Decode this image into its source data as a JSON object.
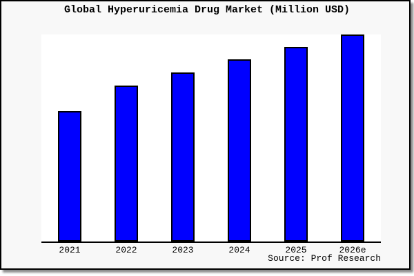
{
  "header": {
    "title": "Global Hyperuricemia Drug Market (Million USD)"
  },
  "footer": {
    "source": "Source: Prof Research"
  },
  "colors": {
    "bar_fill": "#0000ff",
    "bar_border": "#000000",
    "frame_background": "#f8f8f8",
    "plot_background": "#ffffff",
    "axis": "#000000",
    "text": "#000000",
    "shadow": "#8c8c8c"
  },
  "chart_data": {
    "type": "bar",
    "title": "Global Hyperuricemia Drug Market (Million USD)",
    "categories": [
      "2021",
      "2022",
      "2023",
      "2024",
      "2025",
      "2026e"
    ],
    "values": [
      189,
      226,
      245,
      264,
      282,
      300
    ],
    "value_scale": "relative bar heights in pixels; no y-axis ticks or numeric labels are shown in the chart",
    "xlabel": "",
    "ylabel": "",
    "ylim": [
      0,
      301
    ],
    "grid": false,
    "legend": "none",
    "annotations": [
      "Source: Prof Research"
    ]
  }
}
